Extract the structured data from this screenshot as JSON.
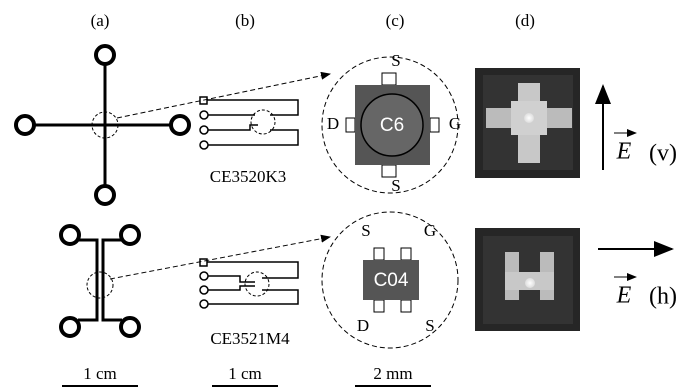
{
  "panel_labels": [
    "(a)",
    "(b)",
    "(c)",
    "(d)"
  ],
  "row_top": {
    "board_label": "CE3520K3",
    "chip": "C6",
    "pins": {
      "top": "S",
      "left": "D",
      "right": "G",
      "bottom": "S"
    },
    "field": "E",
    "polarization": "(v)"
  },
  "row_bottom": {
    "board_label": "CE3521M4",
    "chip": "C04",
    "pins": {
      "top_left": "S",
      "top_right": "G",
      "bottom_left": "D",
      "bottom_right": "S"
    },
    "field": "E",
    "polarization": "(h)"
  },
  "scale_bars": [
    "1 cm",
    "1 cm",
    "2 mm"
  ]
}
